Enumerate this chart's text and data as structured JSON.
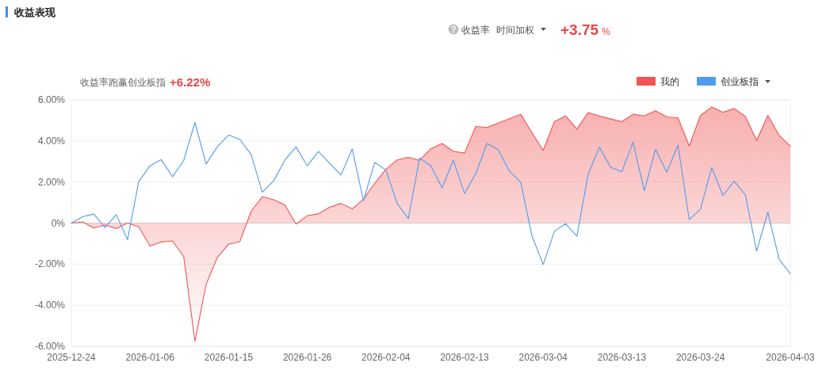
{
  "chart_data": {
    "type": "area",
    "title": "收益表现",
    "annotations": [
      "收益率",
      "时间加权",
      "+3.75",
      "%",
      "收益率跑赢创业板指",
      "+6.22%"
    ],
    "categories": [
      "2025-12-24",
      null,
      null,
      null,
      null,
      null,
      null,
      "2026-01-06",
      null,
      null,
      null,
      null,
      null,
      null,
      "2026-01-15",
      null,
      null,
      null,
      null,
      null,
      null,
      "2026-01-26",
      null,
      null,
      null,
      null,
      null,
      null,
      "2026-02-04",
      null,
      null,
      null,
      null,
      null,
      null,
      "2026-02-13",
      null,
      null,
      null,
      null,
      null,
      null,
      "2026-03-04",
      null,
      null,
      null,
      null,
      null,
      null,
      "2026-03-13",
      null,
      null,
      null,
      null,
      null,
      null,
      "2026-03-24",
      null,
      null,
      null,
      null,
      null,
      null,
      null,
      "2026-04-03"
    ],
    "series": [
      {
        "name": "我的",
        "color": "#f05454",
        "values": [
          0,
          0.06,
          -0.24,
          -0.1,
          -0.27,
          0,
          -0.18,
          -1.12,
          -0.92,
          -0.87,
          -1.63,
          -5.75,
          -2.98,
          -1.67,
          -1.03,
          -0.91,
          0.58,
          1.28,
          1.14,
          0.89,
          -0.05,
          0.36,
          0.45,
          0.77,
          0.96,
          0.69,
          1.16,
          1.93,
          2.62,
          3.08,
          3.2,
          3.06,
          3.62,
          3.88,
          3.49,
          3.41,
          4.71,
          4.66,
          4.87,
          5.08,
          5.3,
          4.4,
          3.54,
          4.94,
          5.22,
          4.58,
          5.38,
          5.22,
          5.07,
          4.94,
          5.3,
          5.22,
          5.47,
          5.17,
          5.12,
          3.75,
          5.24,
          5.65,
          5.39,
          5.58,
          5.19,
          4.02,
          5.25,
          4.27,
          3.75
        ]
      },
      {
        "name": "创业板指",
        "type": "line",
        "color": "#4f9cef",
        "values": [
          0,
          0.31,
          0.44,
          -0.22,
          0.41,
          -0.81,
          2.02,
          2.79,
          3.09,
          2.26,
          3.04,
          4.9,
          2.88,
          3.72,
          4.29,
          4.07,
          3.34,
          1.5,
          2.05,
          3.06,
          3.71,
          2.79,
          3.49,
          2.91,
          2.34,
          3.61,
          1.09,
          2.95,
          2.59,
          0.96,
          0.22,
          3.17,
          2.8,
          1.71,
          3.06,
          1.44,
          2.41,
          3.88,
          3.57,
          2.52,
          1.99,
          -0.62,
          -2.02,
          -0.4,
          -0.03,
          -0.64,
          2.37,
          3.7,
          2.72,
          2.5,
          3.94,
          1.57,
          3.59,
          2.48,
          3.79,
          0.17,
          0.68,
          2.7,
          1.34,
          2.04,
          1.37,
          -1.37,
          0.54,
          -1.76,
          -2.47
        ]
      }
    ],
    "ylim": [
      -6,
      6
    ],
    "yticks": [
      {
        "value": 6,
        "label": "6.00%"
      },
      {
        "value": 4,
        "label": "4.00%"
      },
      {
        "value": 2,
        "label": "2.00%"
      },
      {
        "value": 0,
        "label": "0%"
      },
      {
        "value": -2,
        "label": "-2.00%"
      },
      {
        "value": -4,
        "label": "-4.00%"
      },
      {
        "value": -6,
        "label": "-6.00%"
      }
    ],
    "grid": "y",
    "legend": "top right"
  }
}
